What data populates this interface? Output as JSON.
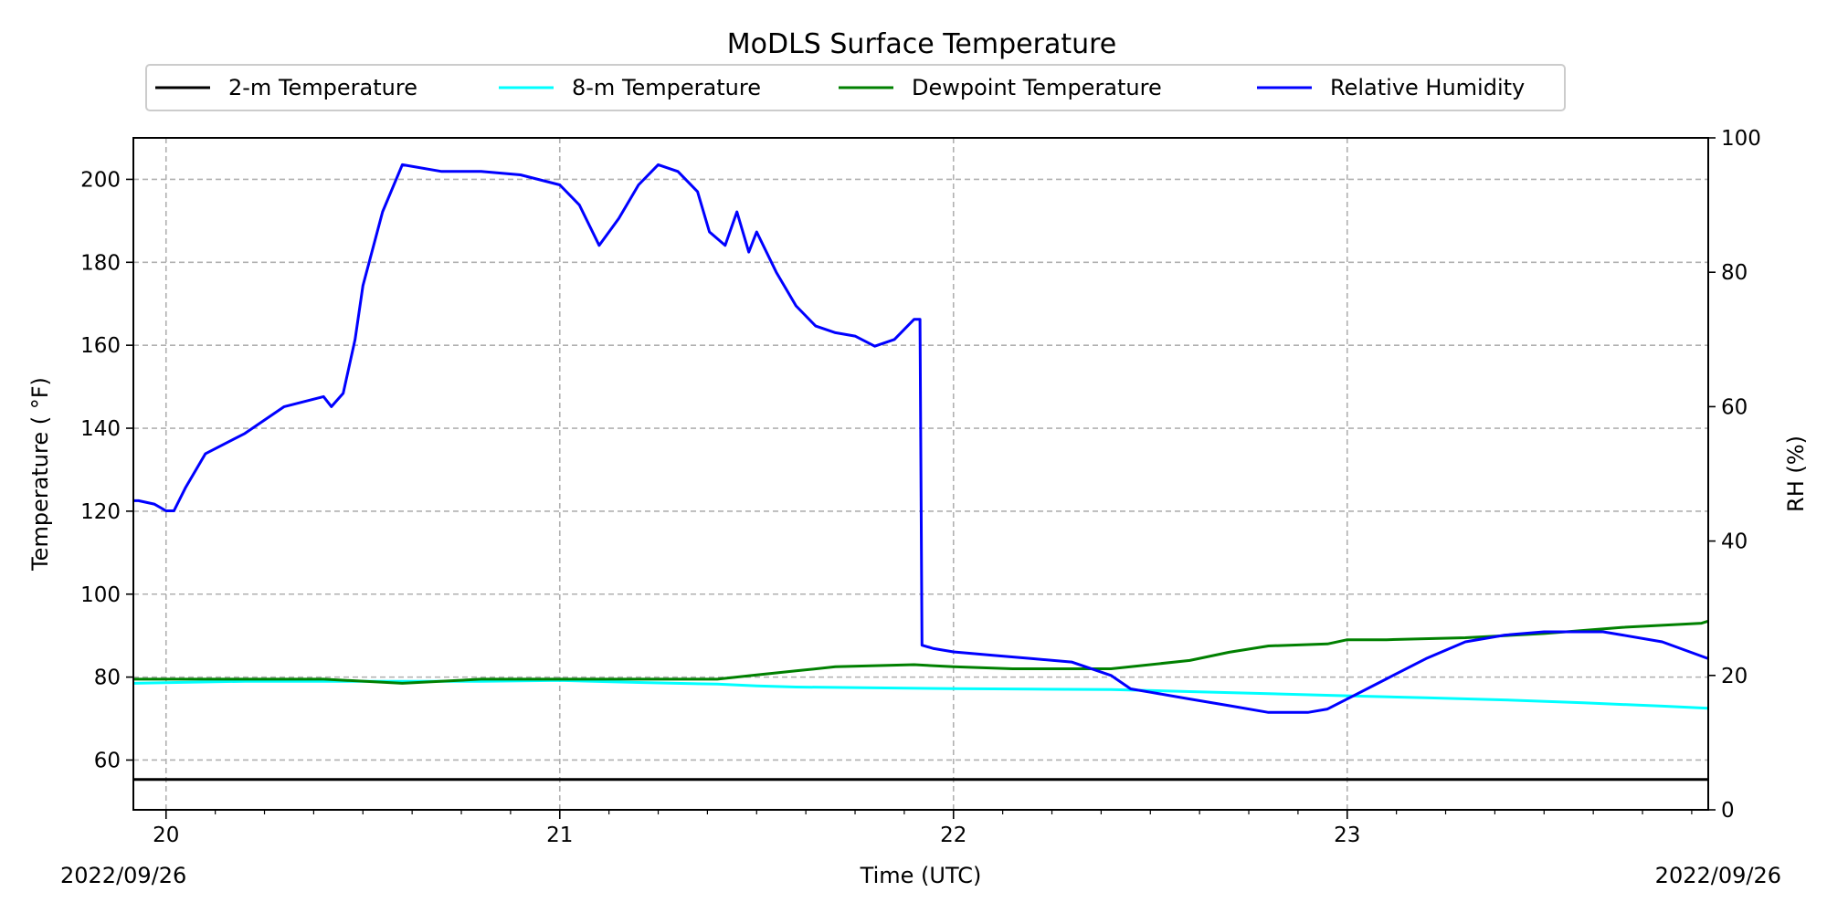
{
  "chart_data": {
    "type": "line",
    "title": "MoDLS Surface Temperature",
    "xlabel": "Time (UTC)",
    "ylabel_left": "Temperature ( °F)",
    "ylabel_right": "RH (%)",
    "date_left": "2022/09/26",
    "date_right": "2022/09/26",
    "xlim": [
      19.917,
      23.917
    ],
    "ylim_left": [
      48,
      210
    ],
    "ylim_right": [
      0,
      100
    ],
    "x_ticks": [
      {
        "value": 20,
        "label": "20"
      },
      {
        "value": 21,
        "label": "21"
      },
      {
        "value": 22,
        "label": "22"
      },
      {
        "value": 23,
        "label": "23"
      }
    ],
    "y_ticks_left": [
      60,
      80,
      100,
      120,
      140,
      160,
      180,
      200
    ],
    "y_ticks_right": [
      0,
      20,
      40,
      60,
      80,
      100
    ],
    "grid": true,
    "legend_position": "top-center",
    "series": [
      {
        "name": "2-m Temperature",
        "axis": "left",
        "color": "#000000",
        "x": [
          19.917,
          23.917
        ],
        "y": [
          55.3,
          55.3
        ]
      },
      {
        "name": "8-m Temperature",
        "axis": "left",
        "color": "#00ffff",
        "x": [
          19.917,
          20.2,
          20.5,
          20.8,
          21.0,
          21.2,
          21.4,
          21.5,
          21.6,
          21.8,
          22.0,
          22.2,
          22.4,
          22.6,
          22.8,
          23.0,
          23.2,
          23.4,
          23.6,
          23.8,
          23.917
        ],
        "y": [
          78.5,
          79.0,
          79.0,
          79.0,
          79.2,
          78.7,
          78.3,
          77.9,
          77.6,
          77.4,
          77.2,
          77.1,
          77.0,
          76.5,
          76.0,
          75.5,
          75.0,
          74.5,
          73.8,
          73.0,
          72.5
        ]
      },
      {
        "name": "Dewpoint Temperature",
        "axis": "left",
        "color": "#008000",
        "x": [
          19.917,
          20.2,
          20.4,
          20.6,
          20.8,
          21.0,
          21.3,
          21.4,
          21.5,
          21.6,
          21.7,
          21.9,
          22.0,
          22.15,
          22.4,
          22.6,
          22.7,
          22.8,
          22.95,
          23.0,
          23.1,
          23.3,
          23.5,
          23.7,
          23.9,
          23.917
        ],
        "y": [
          79.5,
          79.5,
          79.5,
          78.5,
          79.5,
          79.5,
          79.5,
          79.5,
          80.5,
          81.5,
          82.5,
          83.0,
          82.5,
          82.0,
          82.0,
          84.0,
          86.0,
          87.5,
          88.0,
          89.0,
          89.0,
          89.5,
          90.5,
          92.0,
          93.0,
          93.5
        ]
      },
      {
        "name": "Relative Humidity",
        "axis": "right",
        "color": "#0000ff",
        "x": [
          19.917,
          19.93,
          19.97,
          20.0,
          20.02,
          20.05,
          20.1,
          20.2,
          20.3,
          20.4,
          20.42,
          20.45,
          20.48,
          20.5,
          20.55,
          20.6,
          20.7,
          20.8,
          20.9,
          21.0,
          21.05,
          21.1,
          21.15,
          21.2,
          21.25,
          21.3,
          21.35,
          21.38,
          21.42,
          21.45,
          21.48,
          21.5,
          21.55,
          21.6,
          21.65,
          21.7,
          21.75,
          21.8,
          21.85,
          21.9,
          21.915,
          21.92,
          21.95,
          22.0,
          22.1,
          22.2,
          22.3,
          22.4,
          22.45,
          22.5,
          22.6,
          22.7,
          22.8,
          22.9,
          22.95,
          23.0,
          23.1,
          23.2,
          23.3,
          23.4,
          23.5,
          23.6,
          23.65,
          23.7,
          23.8,
          23.917
        ],
        "y": [
          46,
          46,
          45.5,
          44.5,
          44.5,
          48,
          53,
          56,
          60,
          61.5,
          60,
          62,
          70,
          78,
          89,
          96,
          95,
          95,
          94.5,
          93,
          90,
          84,
          88,
          93,
          96,
          95,
          92,
          86,
          84,
          89,
          83,
          86,
          80,
          75,
          72,
          71,
          70.5,
          69,
          70,
          73,
          73,
          24.5,
          24,
          23.5,
          23,
          22.5,
          22,
          20,
          18,
          17.5,
          16.5,
          15.5,
          14.5,
          14.5,
          15,
          16.5,
          19.5,
          22.5,
          25,
          26,
          26.5,
          26.5,
          26.5,
          26,
          25,
          22.5
        ]
      }
    ]
  }
}
